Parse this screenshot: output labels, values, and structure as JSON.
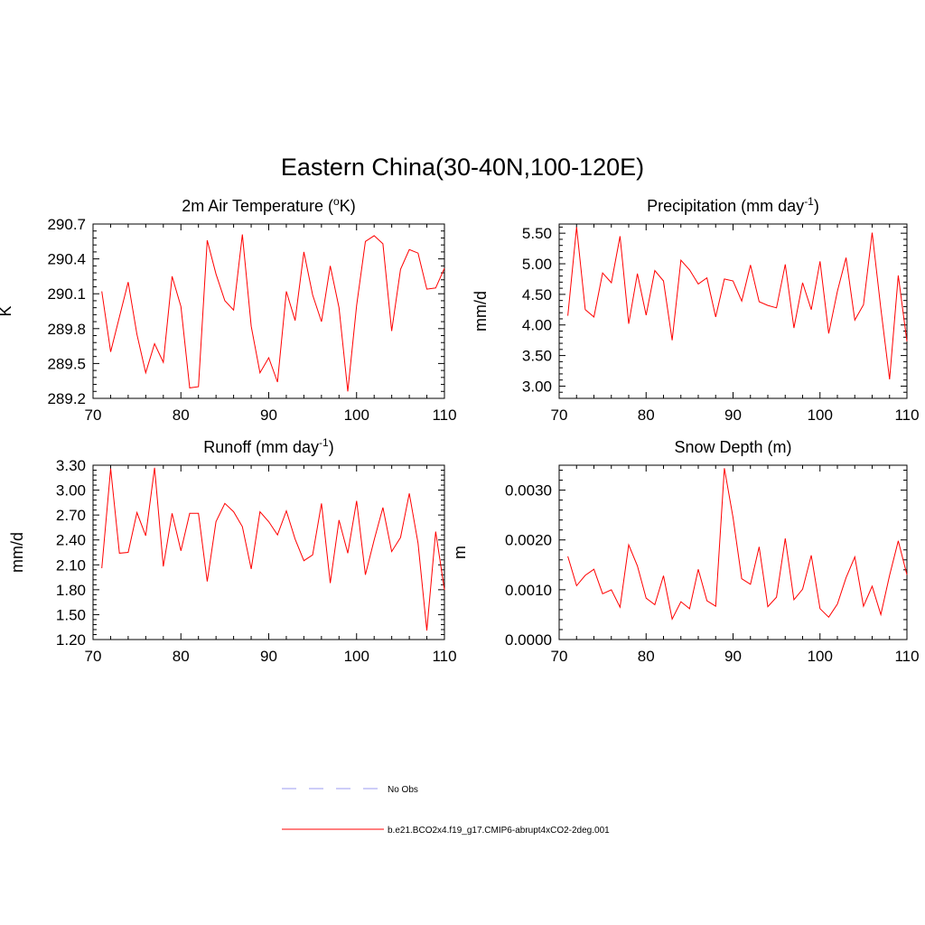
{
  "figure": {
    "title": "Eastern China(30-40N,100-120E)",
    "legend": [
      {
        "label": "No Obs",
        "style": "dashed",
        "color": "#9b9bf0"
      },
      {
        "label": "b.e21.BCO2x4.f19_g17.CMIP6-abrupt4xCO2-2deg.001",
        "style": "solid",
        "color": "#ff0000"
      }
    ]
  },
  "chart_data": [
    {
      "type": "line",
      "title": "2m Air Temperature (",
      "title_sup": "o",
      "title_tail": "K)",
      "xlabel": "",
      "ylabel": "K",
      "xlim": [
        70,
        110
      ],
      "ylim": [
        289.2,
        290.7
      ],
      "xticks": [
        70,
        80,
        90,
        100,
        110
      ],
      "yticks": [
        289.2,
        289.5,
        289.8,
        290.1,
        290.4,
        290.7
      ],
      "ytick_labels": [
        "289.2",
        "289.5",
        "289.8",
        "290.1",
        "290.4",
        "290.7"
      ],
      "series": [
        {
          "name": "b.e21.BCO2x4.f19_g17.CMIP6-abrupt4xCO2-2deg.001",
          "color": "#ff0000",
          "x": [
            71,
            72,
            73,
            74,
            75,
            76,
            77,
            78,
            79,
            80,
            81,
            82,
            83,
            84,
            85,
            86,
            87,
            88,
            89,
            90,
            91,
            92,
            93,
            94,
            95,
            96,
            97,
            98,
            99,
            100,
            101,
            102,
            103,
            104,
            105,
            106,
            107,
            108,
            109,
            110
          ],
          "values": [
            290.12,
            289.6,
            289.9,
            290.2,
            289.75,
            289.42,
            289.67,
            289.51,
            290.25,
            289.99,
            289.29,
            289.3,
            290.56,
            290.27,
            290.04,
            289.96,
            290.61,
            289.82,
            289.42,
            289.55,
            289.34,
            290.12,
            289.87,
            290.46,
            290.09,
            289.86,
            290.34,
            289.98,
            289.26,
            290.0,
            290.55,
            290.6,
            290.53,
            289.78,
            290.31,
            290.48,
            290.45,
            290.14,
            290.15,
            290.32
          ]
        }
      ]
    },
    {
      "type": "line",
      "title": "Precipitation (mm day",
      "title_sup": "-1",
      "title_tail": ")",
      "xlabel": "",
      "ylabel": "mm/d",
      "xlim": [
        70,
        110
      ],
      "ylim": [
        2.8,
        5.65
      ],
      "xticks": [
        70,
        80,
        90,
        100,
        110
      ],
      "yticks": [
        3.0,
        3.5,
        4.0,
        4.5,
        5.0,
        5.5
      ],
      "ytick_labels": [
        "3.00",
        "3.50",
        "4.00",
        "4.50",
        "5.00",
        "5.50"
      ],
      "series": [
        {
          "name": "b.e21.BCO2x4.f19_g17.CMIP6-abrupt4xCO2-2deg.001",
          "color": "#ff0000",
          "x": [
            71,
            72,
            73,
            74,
            75,
            76,
            77,
            78,
            79,
            80,
            81,
            82,
            83,
            84,
            85,
            86,
            87,
            88,
            89,
            90,
            91,
            92,
            93,
            94,
            95,
            96,
            97,
            98,
            99,
            100,
            101,
            102,
            103,
            104,
            105,
            106,
            107,
            108,
            109,
            110
          ],
          "values": [
            4.15,
            5.6,
            4.25,
            4.13,
            4.85,
            4.69,
            5.45,
            4.02,
            4.84,
            4.16,
            4.89,
            4.72,
            3.75,
            5.06,
            4.9,
            4.67,
            4.77,
            4.13,
            4.75,
            4.72,
            4.39,
            4.98,
            4.38,
            4.32,
            4.28,
            4.99,
            3.95,
            4.69,
            4.25,
            5.04,
            3.86,
            4.55,
            5.1,
            4.08,
            4.33,
            5.51,
            4.27,
            3.11,
            4.81,
            3.73
          ]
        }
      ]
    },
    {
      "type": "line",
      "title": "Runoff (mm day",
      "title_sup": "-1",
      "title_tail": ")",
      "xlabel": "",
      "ylabel": "mm/d",
      "xlim": [
        70,
        110
      ],
      "ylim": [
        1.2,
        3.3
      ],
      "xticks": [
        70,
        80,
        90,
        100,
        110
      ],
      "yticks": [
        1.2,
        1.5,
        1.8,
        2.1,
        2.4,
        2.7,
        3.0,
        3.3
      ],
      "ytick_labels": [
        "1.20",
        "1.50",
        "1.80",
        "2.10",
        "2.40",
        "2.70",
        "3.00",
        "3.30"
      ],
      "series": [
        {
          "name": "b.e21.BCO2x4.f19_g17.CMIP6-abrupt4xCO2-2deg.001",
          "color": "#ff0000",
          "x": [
            71,
            72,
            73,
            74,
            75,
            76,
            77,
            78,
            79,
            80,
            81,
            82,
            83,
            84,
            85,
            86,
            87,
            88,
            89,
            90,
            91,
            92,
            93,
            94,
            95,
            96,
            97,
            98,
            99,
            100,
            101,
            102,
            103,
            104,
            105,
            106,
            107,
            108,
            109,
            110
          ],
          "values": [
            2.06,
            3.26,
            2.24,
            2.25,
            2.73,
            2.45,
            3.27,
            2.08,
            2.72,
            2.27,
            2.72,
            2.72,
            1.9,
            2.62,
            2.84,
            2.74,
            2.56,
            2.05,
            2.74,
            2.62,
            2.46,
            2.75,
            2.41,
            2.15,
            2.22,
            2.84,
            1.88,
            2.64,
            2.24,
            2.87,
            1.98,
            2.4,
            2.79,
            2.26,
            2.43,
            2.96,
            2.36,
            1.31,
            2.5,
            1.8
          ]
        }
      ]
    },
    {
      "type": "line",
      "title": "Snow Depth (m)",
      "title_sup": "",
      "title_tail": "",
      "xlabel": "",
      "ylabel": "m",
      "xlim": [
        70,
        110
      ],
      "ylim": [
        0.0,
        0.0035
      ],
      "xticks": [
        70,
        80,
        90,
        100,
        110
      ],
      "yticks": [
        0.0,
        0.001,
        0.002,
        0.003
      ],
      "ytick_labels": [
        "0.0000",
        "0.0010",
        "0.0020",
        "0.0030"
      ],
      "series": [
        {
          "name": "b.e21.BCO2x4.f19_g17.CMIP6-abrupt4xCO2-2deg.001",
          "color": "#ff0000",
          "x": [
            71,
            72,
            73,
            74,
            75,
            76,
            77,
            78,
            79,
            80,
            81,
            82,
            83,
            84,
            85,
            86,
            87,
            88,
            89,
            90,
            91,
            92,
            93,
            94,
            95,
            96,
            97,
            98,
            99,
            100,
            101,
            102,
            103,
            104,
            105,
            106,
            107,
            108,
            109,
            110
          ],
          "values": [
            0.00167,
            0.00108,
            0.00129,
            0.00141,
            0.00092,
            0.001,
            0.00065,
            0.0019,
            0.00148,
            0.00083,
            0.0007,
            0.00128,
            0.00041,
            0.00076,
            0.00062,
            0.00141,
            0.00078,
            0.00067,
            0.00344,
            0.00245,
            0.00122,
            0.00111,
            0.00186,
            0.00066,
            0.00085,
            0.00203,
            0.0008,
            0.00101,
            0.00169,
            0.00062,
            0.00045,
            0.00071,
            0.00124,
            0.00166,
            0.00067,
            0.00107,
            0.0005,
            0.00129,
            0.00198,
            0.0013
          ]
        }
      ]
    }
  ]
}
